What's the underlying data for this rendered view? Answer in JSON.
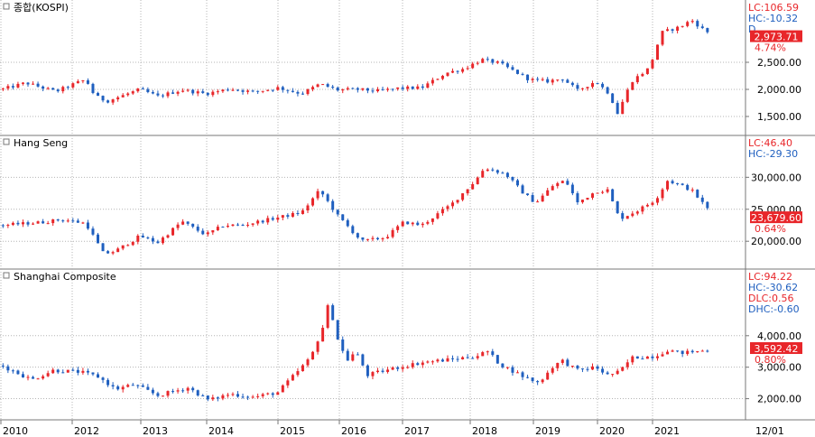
{
  "colors": {
    "up": "#e8262a",
    "down": "#1f5fbf",
    "grid": "#b4b4b4",
    "info_red": "#e8262a",
    "info_blue": "#1f5fbf",
    "price_box": "#e8262a",
    "background": "#ffffff"
  },
  "chart_data": [
    {
      "type": "candlestick",
      "title": "종합(KOSPI)",
      "info": [
        {
          "text": "LC:106.59",
          "color": "red"
        },
        {
          "text": "HC:-10.32",
          "color": "blue"
        },
        {
          "text": "D",
          "color": "blue"
        }
      ],
      "last_price": "2,973.71",
      "change_pct": "4.74%",
      "y_ticks": [
        "2,500.00",
        "2,000.00",
        "1,500.00"
      ],
      "y_tick_values": [
        2500,
        2000,
        1500
      ],
      "ylim": [
        1250,
        3350
      ],
      "last_value": 2973.71,
      "anchors": [
        [
          2010.0,
          2000
        ],
        [
          2010.4,
          2120
        ],
        [
          2010.9,
          1960
        ],
        [
          2011.2,
          2100
        ],
        [
          2011.4,
          2180
        ],
        [
          2011.55,
          1880
        ],
        [
          2011.75,
          1780
        ],
        [
          2012.0,
          1880
        ],
        [
          2012.3,
          2000
        ],
        [
          2012.6,
          1870
        ],
        [
          2013.0,
          1990
        ],
        [
          2013.4,
          1920
        ],
        [
          2013.8,
          2010
        ],
        [
          2014.2,
          1950
        ],
        [
          2014.6,
          2030
        ],
        [
          2015.0,
          1920
        ],
        [
          2015.3,
          2100
        ],
        [
          2015.6,
          1990
        ],
        [
          2015.9,
          2000
        ],
        [
          2016.3,
          1970
        ],
        [
          2016.6,
          2020
        ],
        [
          2017.0,
          2030
        ],
        [
          2017.4,
          2300
        ],
        [
          2017.7,
          2380
        ],
        [
          2018.0,
          2550
        ],
        [
          2018.3,
          2480
        ],
        [
          2018.6,
          2300
        ],
        [
          2018.8,
          2180
        ],
        [
          2019.1,
          2150
        ],
        [
          2019.35,
          2200
        ],
        [
          2019.6,
          1980
        ],
        [
          2019.9,
          2150
        ],
        [
          2020.15,
          1900
        ],
        [
          2020.25,
          1520
        ],
        [
          2020.5,
          2150
        ],
        [
          2020.8,
          2400
        ],
        [
          2021.0,
          3050
        ],
        [
          2021.3,
          3150
        ],
        [
          2021.5,
          3280
        ],
        [
          2021.7,
          3100
        ],
        [
          2021.9,
          2970
        ]
      ]
    },
    {
      "type": "candlestick",
      "title": "Hang Seng",
      "info": [
        {
          "text": "LC:46.40",
          "color": "red"
        },
        {
          "text": "HC:-29.30",
          "color": "blue"
        }
      ],
      "last_price": "23,679.60",
      "change_pct": "0.64%",
      "y_ticks": [
        "30,000.00",
        "25,000.00",
        "20,000.00"
      ],
      "y_tick_values": [
        30000,
        25000,
        20000
      ],
      "ylim": [
        16500,
        34000
      ],
      "last_value": 23679.6,
      "anchors": [
        [
          2010.0,
          22500
        ],
        [
          2010.7,
          23000
        ],
        [
          2011.0,
          23400
        ],
        [
          2011.4,
          22800
        ],
        [
          2011.7,
          18000
        ],
        [
          2011.9,
          18500
        ],
        [
          2012.3,
          20800
        ],
        [
          2012.6,
          19800
        ],
        [
          2013.0,
          23100
        ],
        [
          2013.4,
          21000
        ],
        [
          2013.7,
          22500
        ],
        [
          2014.0,
          22500
        ],
        [
          2014.5,
          23500
        ],
        [
          2015.0,
          24500
        ],
        [
          2015.3,
          28000
        ],
        [
          2015.6,
          24000
        ],
        [
          2016.0,
          20000
        ],
        [
          2016.4,
          20600
        ],
        [
          2016.7,
          23000
        ],
        [
          2017.0,
          22500
        ],
        [
          2017.5,
          25800
        ],
        [
          2017.9,
          29500
        ],
        [
          2018.05,
          31500
        ],
        [
          2018.4,
          30500
        ],
        [
          2018.7,
          27500
        ],
        [
          2018.9,
          26000
        ],
        [
          2019.2,
          28800
        ],
        [
          2019.4,
          29500
        ],
        [
          2019.6,
          26000
        ],
        [
          2019.9,
          27800
        ],
        [
          2020.1,
          28000
        ],
        [
          2020.3,
          23500
        ],
        [
          2020.6,
          24800
        ],
        [
          2020.9,
          26500
        ],
        [
          2021.1,
          29500
        ],
        [
          2021.3,
          28800
        ],
        [
          2021.5,
          28000
        ],
        [
          2021.7,
          25800
        ],
        [
          2021.9,
          23680
        ]
      ]
    },
    {
      "type": "candlestick",
      "title": "Shanghai Composite",
      "info": [
        {
          "text": "LC:94.22",
          "color": "red"
        },
        {
          "text": "HC:-30.62",
          "color": "blue"
        },
        {
          "text": "DLC:0.56",
          "color": "red"
        },
        {
          "text": "DHC:-0.60",
          "color": "blue"
        }
      ],
      "last_price": "3,592.42",
      "change_pct": "0.80%",
      "y_ticks": [
        "4,000.00",
        "3,000.00",
        "2,000.00"
      ],
      "y_tick_values": [
        4000,
        3000,
        2000
      ],
      "ylim": [
        1500,
        5600
      ],
      "last_value": 3592.42,
      "anchors": [
        [
          2010.0,
          3050
        ],
        [
          2010.5,
          2600
        ],
        [
          2010.85,
          2900
        ],
        [
          2011.3,
          2850
        ],
        [
          2011.6,
          2700
        ],
        [
          2011.9,
          2300
        ],
        [
          2012.2,
          2450
        ],
        [
          2012.6,
          2100
        ],
        [
          2012.9,
          2250
        ],
        [
          2013.1,
          2350
        ],
        [
          2013.45,
          1950
        ],
        [
          2013.8,
          2150
        ],
        [
          2014.2,
          2050
        ],
        [
          2014.6,
          2200
        ],
        [
          2014.9,
          2800
        ],
        [
          2015.15,
          3300
        ],
        [
          2015.4,
          4500
        ],
        [
          2015.45,
          5100
        ],
        [
          2015.6,
          3900
        ],
        [
          2015.75,
          3200
        ],
        [
          2015.9,
          3500
        ],
        [
          2016.1,
          2750
        ],
        [
          2016.5,
          2950
        ],
        [
          2017.0,
          3150
        ],
        [
          2017.5,
          3250
        ],
        [
          2017.9,
          3350
        ],
        [
          2018.1,
          3500
        ],
        [
          2018.3,
          3100
        ],
        [
          2018.7,
          2700
        ],
        [
          2018.95,
          2500
        ],
        [
          2019.2,
          3050
        ],
        [
          2019.35,
          3200
        ],
        [
          2019.6,
          2900
        ],
        [
          2019.9,
          3000
        ],
        [
          2020.1,
          2750
        ],
        [
          2020.3,
          2850
        ],
        [
          2020.5,
          3300
        ],
        [
          2020.9,
          3350
        ],
        [
          2021.1,
          3550
        ],
        [
          2021.3,
          3450
        ],
        [
          2021.6,
          3500
        ],
        [
          2021.9,
          3592
        ]
      ]
    }
  ],
  "x_axis": {
    "labels": [
      "2010",
      "2012",
      "2013",
      "2014",
      "2015",
      "2016",
      "2017",
      "2018",
      "2019",
      "2020",
      "2021"
    ],
    "values": [
      2010,
      2012,
      2013,
      2014,
      2015,
      2016,
      2017,
      2018,
      2019,
      2020,
      2021
    ],
    "right_label": "12/01",
    "range": [
      2010,
      2022.4
    ]
  }
}
